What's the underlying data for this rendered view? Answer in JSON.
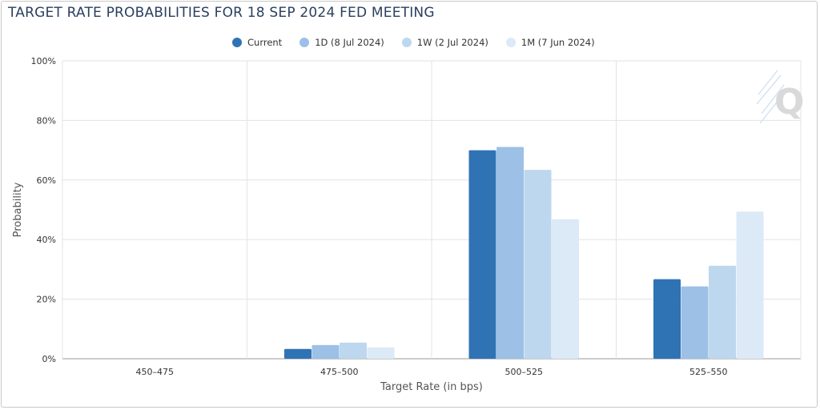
{
  "chart_data": {
    "type": "bar",
    "title": "TARGET RATE PROBABILITIES FOR 18 SEP 2024 FED MEETING",
    "xlabel": "Target Rate (in bps)",
    "ylabel": "Probability",
    "categories": [
      "450–475",
      "475–500",
      "500–525",
      "525–550"
    ],
    "ylim": [
      0,
      100
    ],
    "yticks": [
      0,
      20,
      40,
      60,
      80,
      100
    ],
    "ytick_labels": [
      "0%",
      "20%",
      "40%",
      "60%",
      "80%",
      "100%"
    ],
    "grid": true,
    "legend_position": "top-center",
    "series": [
      {
        "name": "Current",
        "color": "#2f73b5",
        "values": [
          0,
          3.3,
          70.0,
          26.7
        ]
      },
      {
        "name": "1D (8 Jul 2024)",
        "color": "#9cc0e6",
        "values": [
          0,
          4.6,
          71.1,
          24.3
        ]
      },
      {
        "name": "1W (2 Jul 2024)",
        "color": "#bdd7ee",
        "values": [
          0,
          5.4,
          63.4,
          31.2
        ]
      },
      {
        "name": "1M (7 Jun 2024)",
        "color": "#dce9f6",
        "values": [
          0,
          3.8,
          46.8,
          49.4
        ]
      }
    ]
  }
}
